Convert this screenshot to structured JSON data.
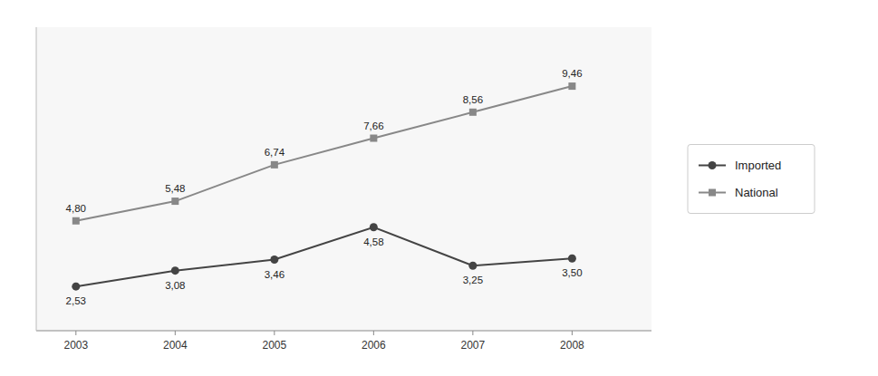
{
  "chart_data": {
    "type": "line",
    "x": [
      2003,
      2004,
      2005,
      2006,
      2007,
      2008
    ],
    "series": [
      {
        "name": "Imported",
        "color": "#444444",
        "marker": "circle",
        "values": [
          2.53,
          3.08,
          3.46,
          4.58,
          3.25,
          3.5
        ],
        "value_labels": [
          "2,53",
          "3,08",
          "3,46",
          "4,58",
          "3,25",
          "3,50"
        ]
      },
      {
        "name": "National",
        "color": "#888888",
        "marker": "square",
        "values": [
          4.8,
          5.48,
          6.74,
          7.66,
          8.56,
          9.46
        ],
        "value_labels": [
          "4,80",
          "5,48",
          "6,74",
          "7,66",
          "8,56",
          "9,46"
        ]
      }
    ],
    "xlim": [
      2002.6,
      2008.8
    ],
    "ylim": [
      1.0,
      11.5
    ],
    "xticks": [
      2003,
      2004,
      2005,
      2006,
      2007,
      2008
    ],
    "yticks": [],
    "tick_labels": "x",
    "data_labels": true,
    "grid": false,
    "legend": "right"
  }
}
